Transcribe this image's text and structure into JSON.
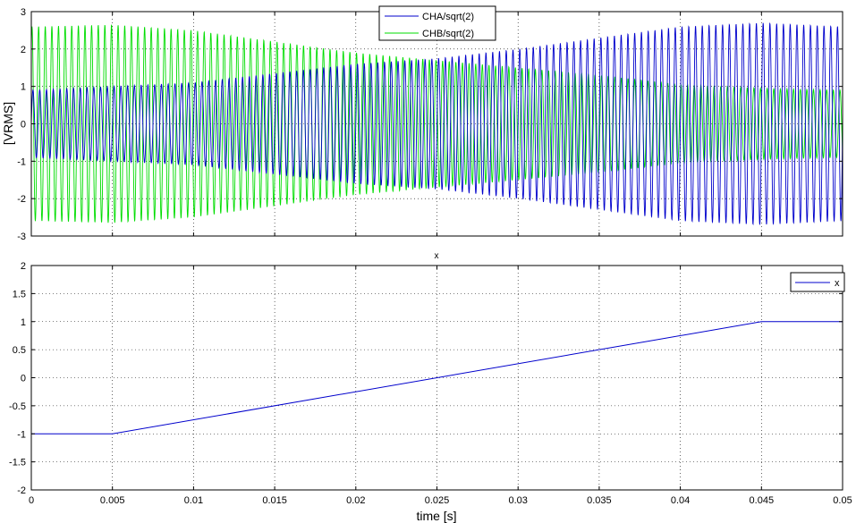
{
  "chart_data": [
    {
      "type": "line",
      "title": "",
      "xlabel": "",
      "ylabel": "[VRMS]",
      "xlim": [
        0,
        0.05
      ],
      "ylim": [
        -3,
        3
      ],
      "yticks": [
        -3,
        -2,
        -1,
        0,
        1,
        2,
        3
      ],
      "grid": true,
      "legend_position": "top-center",
      "series": [
        {
          "name": "CHA/sqrt(2)",
          "color": "#0000cc",
          "description": "fast oscillation whose peak amplitude follows the envelope below",
          "envelope_t": [
            0,
            0.005,
            0.01,
            0.015,
            0.02,
            0.025,
            0.03,
            0.035,
            0.04,
            0.045,
            0.05
          ],
          "envelope_amp": [
            0.9,
            1.0,
            1.1,
            1.35,
            1.6,
            1.75,
            2.0,
            2.3,
            2.6,
            2.7,
            2.6
          ]
        },
        {
          "name": "CHB/sqrt(2)",
          "color": "#00dd00",
          "description": "fast oscillation whose peak amplitude follows the envelope below",
          "envelope_t": [
            0,
            0.005,
            0.01,
            0.015,
            0.02,
            0.025,
            0.03,
            0.035,
            0.04,
            0.045,
            0.05
          ],
          "envelope_amp": [
            2.6,
            2.65,
            2.5,
            2.2,
            1.9,
            1.7,
            1.5,
            1.3,
            1.05,
            0.95,
            0.9
          ]
        }
      ]
    },
    {
      "type": "line",
      "title": "x",
      "xlabel": "time [s]",
      "ylabel": "",
      "xlim": [
        0,
        0.05
      ],
      "ylim": [
        -2,
        2
      ],
      "xticks": [
        0,
        0.005,
        0.01,
        0.015,
        0.02,
        0.025,
        0.03,
        0.035,
        0.04,
        0.045,
        0.05
      ],
      "yticks": [
        -2,
        -1.5,
        -1,
        -0.5,
        0,
        0.5,
        1,
        1.5,
        2
      ],
      "grid": true,
      "legend_position": "top-right",
      "series": [
        {
          "name": "x",
          "color": "#0000cc",
          "x": [
            0,
            0.005,
            0.045,
            0.05
          ],
          "y": [
            -1,
            -1,
            1,
            1
          ]
        }
      ]
    }
  ]
}
